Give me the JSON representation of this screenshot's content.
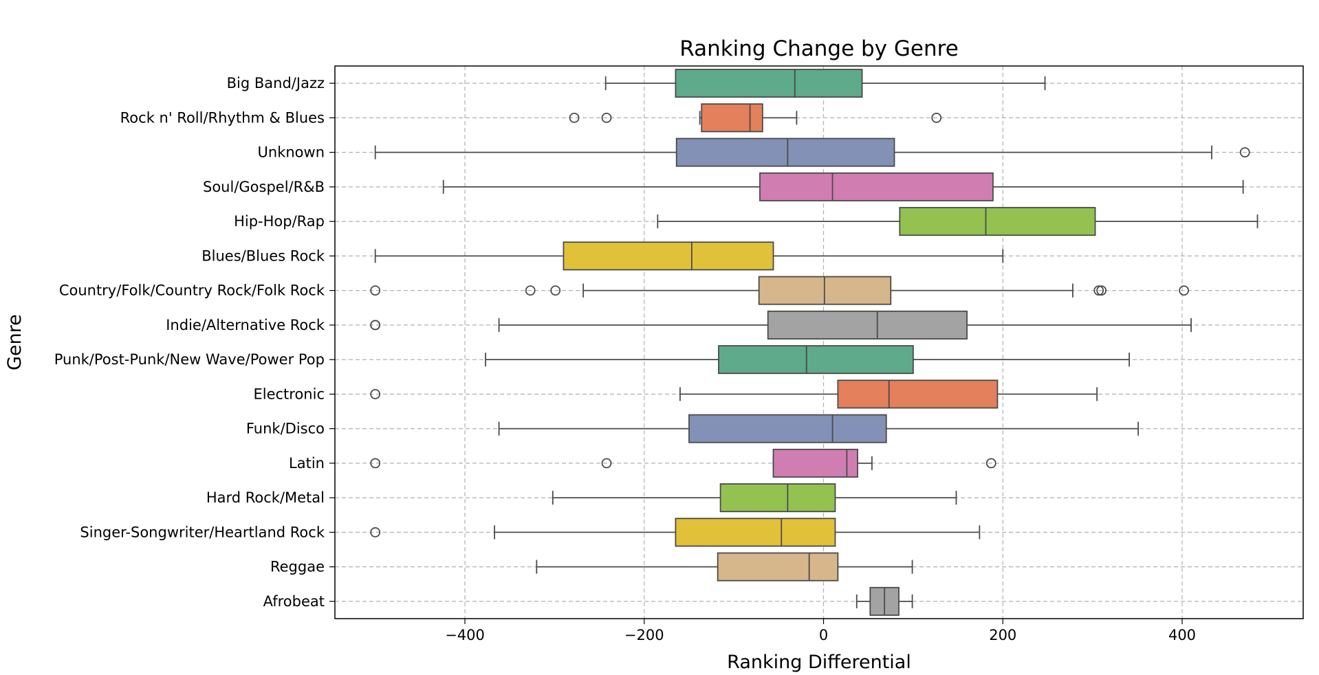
{
  "chart_data": {
    "type": "boxplot",
    "orientation": "horizontal",
    "title": "Ranking Change by Genre",
    "xlabel": "Ranking Differential",
    "ylabel": "Genre",
    "xlim": [
      -545,
      535
    ],
    "x_ticks": [
      -400,
      -200,
      0,
      200,
      400
    ],
    "x_tick_labels": [
      "−400",
      "−200",
      "0",
      "200",
      "400"
    ],
    "grid": true,
    "legend": "none",
    "categories": [
      "Big Band/Jazz",
      "Rock n' Roll/Rhythm & Blues",
      "Unknown",
      "Soul/Gospel/R&B",
      "Hip-Hop/Rap",
      "Blues/Blues Rock",
      "Country/Folk/Country Rock/Folk Rock",
      "Indie/Alternative Rock",
      "Punk/Post-Punk/New Wave/Power Pop",
      "Electronic",
      "Funk/Disco",
      "Latin",
      "Hard Rock/Metal",
      "Singer-Songwriter/Heartland Rock",
      "Reggae",
      "Afrobeat"
    ],
    "series": [
      {
        "whisker_low": -243,
        "q1": -165,
        "median": -32,
        "q3": 43,
        "whisker_high": 247,
        "outliers": [],
        "color": "#5eaa8a"
      },
      {
        "whisker_low": -138,
        "q1": -136,
        "median": -82,
        "q3": -68,
        "whisker_high": -30,
        "outliers": [
          -278,
          -242,
          126
        ],
        "color": "#e4805c"
      },
      {
        "whisker_low": -500,
        "q1": -164,
        "median": -40,
        "q3": 79,
        "whisker_high": 433,
        "outliers": [
          470
        ],
        "color": "#8491b6"
      },
      {
        "whisker_low": -424,
        "q1": -71,
        "median": 10,
        "q3": 189,
        "whisker_high": 468,
        "outliers": [],
        "color": "#d07db2"
      },
      {
        "whisker_low": -185,
        "q1": 85,
        "median": 181,
        "q3": 303,
        "whisker_high": 484,
        "outliers": [],
        "color": "#93c250"
      },
      {
        "whisker_low": -500,
        "q1": -290,
        "median": -147,
        "q3": -56,
        "whisker_high": 200,
        "outliers": [],
        "color": "#e1c13a"
      },
      {
        "whisker_low": -268,
        "q1": -72,
        "median": 1,
        "q3": 75,
        "whisker_high": 278,
        "outliers": [
          -500,
          -327,
          -299,
          307,
          310,
          402
        ],
        "color": "#d5b78b"
      },
      {
        "whisker_low": -362,
        "q1": -62,
        "median": 60,
        "q3": 160,
        "whisker_high": 410,
        "outliers": [
          -500,
          -500
        ],
        "color": "#a3a3a3"
      },
      {
        "whisker_low": -377,
        "q1": -117,
        "median": -19,
        "q3": 100,
        "whisker_high": 341,
        "outliers": [],
        "color": "#5eaa8a"
      },
      {
        "whisker_low": -160,
        "q1": 16,
        "median": 73,
        "q3": 194,
        "whisker_high": 305,
        "outliers": [
          -500
        ],
        "color": "#e4805c"
      },
      {
        "whisker_low": -362,
        "q1": -150,
        "median": 10,
        "q3": 70,
        "whisker_high": 351,
        "outliers": [],
        "color": "#8491b6"
      },
      {
        "whisker_low": -56,
        "q1": -56,
        "median": 26,
        "q3": 38,
        "whisker_high": 54,
        "outliers": [
          -500,
          -242,
          187
        ],
        "color": "#d07db2"
      },
      {
        "whisker_low": -302,
        "q1": -115,
        "median": -40,
        "q3": 13,
        "whisker_high": 148,
        "outliers": [],
        "color": "#93c250"
      },
      {
        "whisker_low": -367,
        "q1": -165,
        "median": -47,
        "q3": 13,
        "whisker_high": 174,
        "outliers": [
          -500
        ],
        "color": "#e1c13a"
      },
      {
        "whisker_low": -320,
        "q1": -118,
        "median": -16,
        "q3": 16,
        "whisker_high": 99,
        "outliers": [],
        "color": "#d5b78b"
      },
      {
        "whisker_low": 37,
        "q1": 52,
        "median": 68,
        "q3": 84,
        "whisker_high": 99,
        "outliers": [],
        "color": "#a3a3a3"
      }
    ]
  }
}
